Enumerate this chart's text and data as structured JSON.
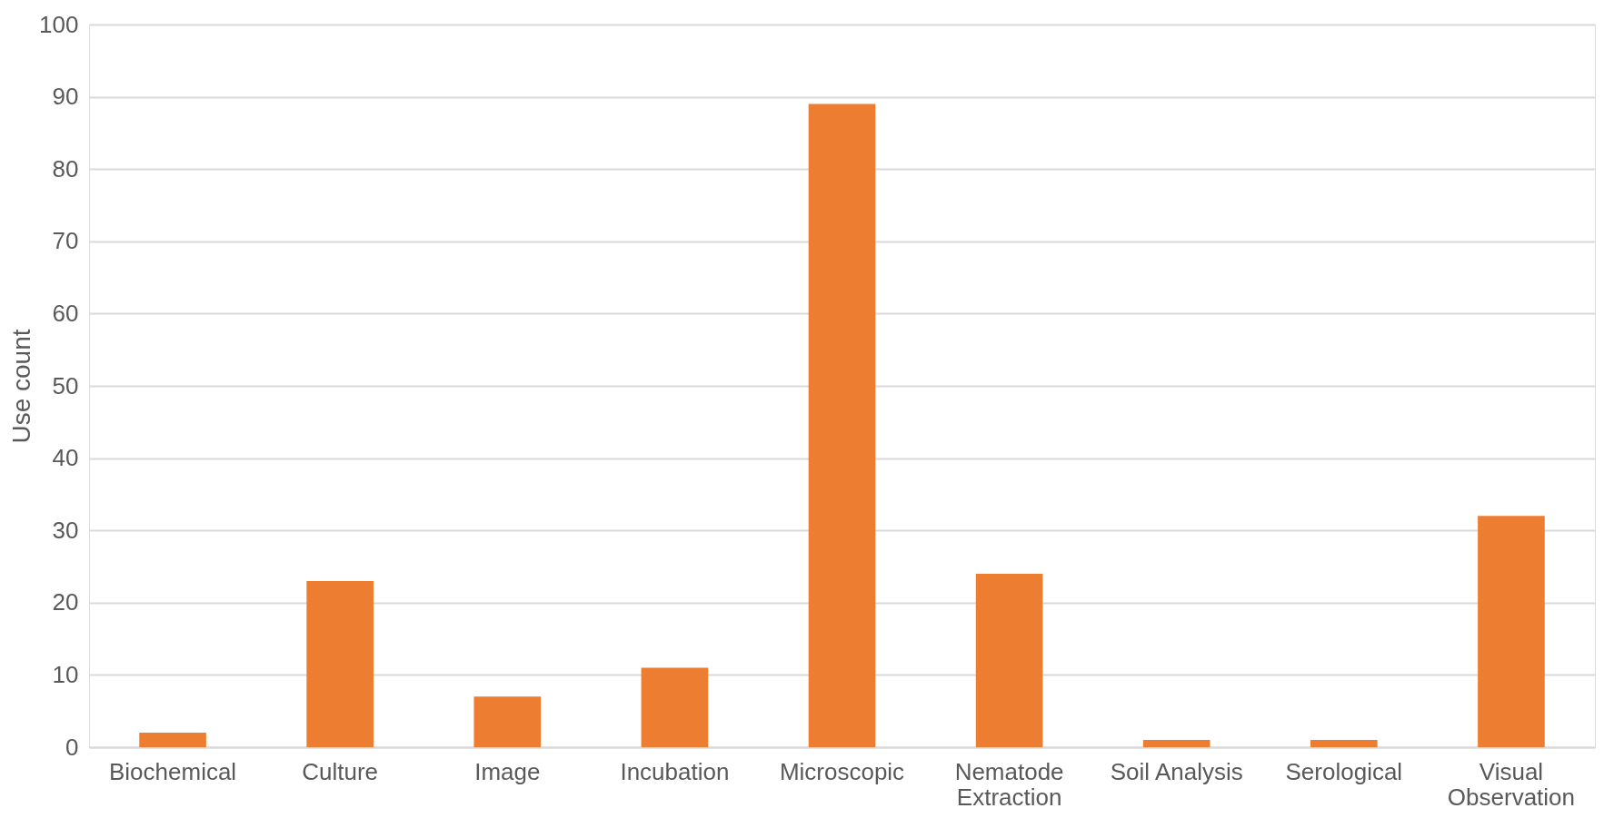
{
  "chart_data": {
    "type": "bar",
    "ylabel": "Use count",
    "categories": [
      "Biochemical",
      "Culture",
      "Image",
      "Incubation",
      "Microscopic",
      "Nematode Extraction",
      "Soil Analysis",
      "Serological",
      "Visual Observation"
    ],
    "values": [
      2,
      23,
      7,
      11,
      89,
      24,
      1,
      1,
      32
    ],
    "color": "#ed7d31",
    "ylim": [
      0,
      100
    ],
    "yticks": [
      0,
      10,
      20,
      30,
      40,
      50,
      60,
      70,
      80,
      90,
      100
    ],
    "grid": "y"
  }
}
